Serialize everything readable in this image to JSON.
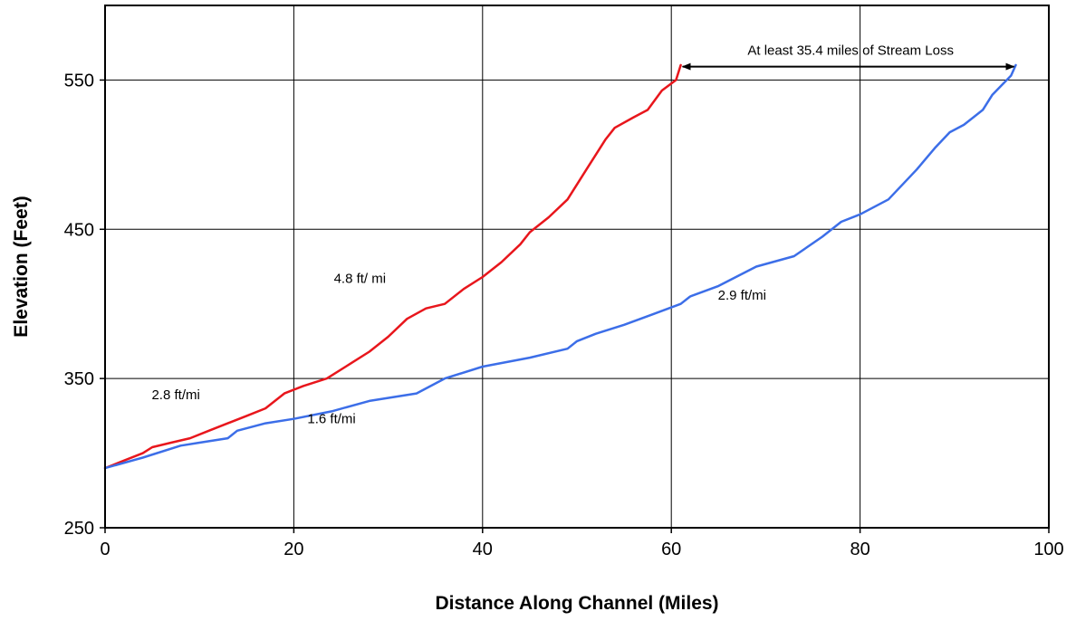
{
  "chart_data": {
    "type": "line",
    "title": "",
    "xlabel": "Distance Along Channel (Miles)",
    "ylabel": "Elevation (Feet)",
    "xlim": [
      0,
      100
    ],
    "ylim": [
      250,
      600
    ],
    "x_ticks": [
      "0",
      "20",
      "40",
      "60",
      "80",
      "100"
    ],
    "y_ticks": [
      "250",
      "350",
      "450",
      "550"
    ],
    "grid": true,
    "legend": "none",
    "series": [
      {
        "color": "#e8161c",
        "x": [
          0,
          2,
          4,
          5,
          7,
          9,
          11,
          13,
          15,
          17,
          19,
          21,
          23.5,
          26,
          28,
          30,
          32,
          34,
          36,
          38,
          40,
          42,
          44,
          45,
          47,
          49,
          51,
          53,
          54,
          56,
          57.5,
          59,
          60.5,
          61
        ],
        "y": [
          290,
          295,
          300,
          304,
          307,
          310,
          315,
          320,
          325,
          330,
          340,
          345,
          350,
          360,
          368,
          378,
          390,
          397,
          400,
          410,
          418,
          428,
          440,
          448,
          458,
          470,
          490,
          510,
          518,
          525,
          530,
          543,
          550,
          560
        ]
      },
      {
        "color": "#3c6ee8",
        "x": [
          0,
          4,
          8,
          10,
          13,
          14,
          17,
          20,
          24,
          28,
          33,
          36,
          40,
          45,
          49,
          50,
          52,
          55,
          58,
          61,
          62,
          65,
          69,
          73,
          76,
          78,
          80,
          83,
          86,
          88,
          89.5,
          91,
          93,
          94,
          96,
          96.5
        ],
        "y": [
          290,
          297,
          305,
          307,
          310,
          315,
          320,
          323,
          328,
          335,
          340,
          350,
          358,
          364,
          370,
          375,
          380,
          386,
          393,
          400,
          405,
          412,
          425,
          432,
          445,
          455,
          460,
          470,
          490,
          505,
          515,
          520,
          530,
          540,
          553,
          560
        ]
      }
    ],
    "annotations": [
      {
        "text": "4.8 ft/ mi",
        "x": 27,
        "y": 414
      },
      {
        "text": "2.8 ft/mi",
        "x": 7.5,
        "y": 336
      },
      {
        "text": "1.6 ft/mi",
        "x": 24,
        "y": 320
      },
      {
        "text": "2.9 ft/mi",
        "x": 67.5,
        "y": 403
      },
      {
        "text": "At least 35.4 miles of Stream Loss",
        "x": 79,
        "y": 567,
        "arrow_from": 61,
        "arrow_to": 96.5,
        "arrow_y": 559
      }
    ]
  }
}
